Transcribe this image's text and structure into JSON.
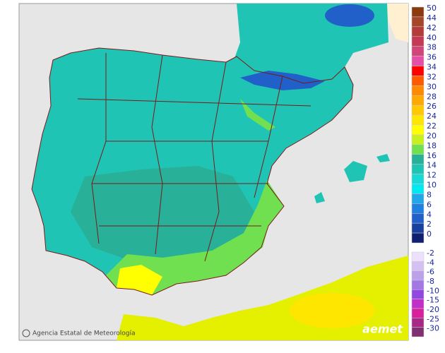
{
  "legend": {
    "positive": [
      {
        "label": "50",
        "color": "#8b3a0f"
      },
      {
        "label": "44",
        "color": "#a5462a"
      },
      {
        "label": "42",
        "color": "#b53a3a"
      },
      {
        "label": "40",
        "color": "#c43a55"
      },
      {
        "label": "38",
        "color": "#d2457a"
      },
      {
        "label": "36",
        "color": "#e450a8"
      },
      {
        "label": "34",
        "color": "#ff0000"
      },
      {
        "label": "32",
        "color": "#ff5a00"
      },
      {
        "label": "30",
        "color": "#ff8a00"
      },
      {
        "label": "28",
        "color": "#ffa800"
      },
      {
        "label": "26",
        "color": "#ffc800"
      },
      {
        "label": "24",
        "color": "#ffe600"
      },
      {
        "label": "22",
        "color": "#ffff00"
      },
      {
        "label": "20",
        "color": "#c8f020"
      },
      {
        "label": "18",
        "color": "#70e050"
      },
      {
        "label": "16",
        "color": "#28b098"
      },
      {
        "label": "14",
        "color": "#20c4b4"
      },
      {
        "label": "12",
        "color": "#18d8d8"
      },
      {
        "label": "10",
        "color": "#00e8f0"
      },
      {
        "label": "8",
        "color": "#20a8e8"
      },
      {
        "label": "6",
        "color": "#2080e0"
      },
      {
        "label": "4",
        "color": "#2060c8"
      },
      {
        "label": "2",
        "color": "#1840a0"
      },
      {
        "label": "0",
        "color": "#102070"
      }
    ],
    "negative": [
      {
        "label": "-2",
        "color": "#ece0fa"
      },
      {
        "label": "-4",
        "color": "#d4c0f2"
      },
      {
        "label": "-6",
        "color": "#bca0ea"
      },
      {
        "label": "-8",
        "color": "#a478e2"
      },
      {
        "label": "-10",
        "color": "#9048e0"
      },
      {
        "label": "-15",
        "color": "#c030c8"
      },
      {
        "label": "-20",
        "color": "#d8209c"
      },
      {
        "label": "-25",
        "color": "#a82888"
      },
      {
        "label": "-30",
        "color": "#803070"
      }
    ]
  },
  "credit": "Agencia Estatal de Meteorología",
  "logo": "aemet"
}
